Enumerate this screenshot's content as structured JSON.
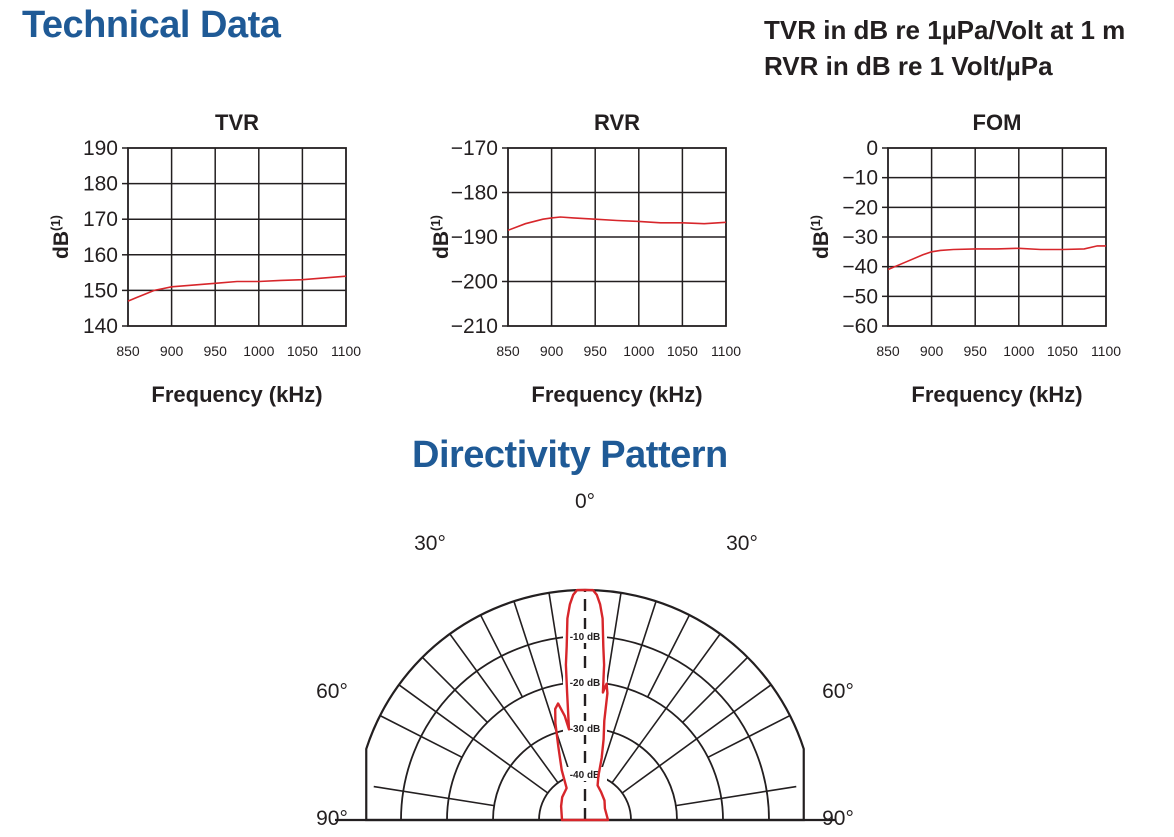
{
  "header": {
    "title": "Technical Data",
    "units_line1": "TVR in dB re 1µPa/Volt at 1 m",
    "units_line2": "RVR in dB re 1 Volt/µPa"
  },
  "directivity_title": "Directivity Pattern",
  "accent_color": "#1f5a96",
  "curve_color": "#d7262b",
  "chart_data": [
    {
      "type": "line",
      "title": "TVR",
      "xlabel": "Frequency (kHz)",
      "ylabel": "dB",
      "ylabel_sup": "(1)",
      "xlim": [
        850,
        1100
      ],
      "ylim": [
        140,
        190
      ],
      "xticks": [
        850,
        900,
        950,
        1000,
        1050,
        1100
      ],
      "yticks": [
        190,
        180,
        170,
        160,
        150,
        140
      ],
      "grid": true,
      "x": [
        850,
        860,
        870,
        880,
        890,
        900,
        925,
        950,
        975,
        1000,
        1025,
        1050,
        1075,
        1100
      ],
      "y": [
        147,
        148,
        149,
        150,
        150.5,
        151,
        151.5,
        152,
        152.5,
        152.5,
        152.8,
        153,
        153.5,
        154
      ]
    },
    {
      "type": "line",
      "title": "RVR",
      "xlabel": "Frequency (kHz)",
      "ylabel": "dB",
      "ylabel_sup": "(1)",
      "xlim": [
        850,
        1100
      ],
      "ylim": [
        -210,
        -170
      ],
      "xticks": [
        850,
        900,
        950,
        1000,
        1050,
        1100
      ],
      "yticks": [
        -170,
        -180,
        -190,
        -200,
        -210
      ],
      "grid": true,
      "x": [
        850,
        870,
        890,
        900,
        910,
        925,
        950,
        975,
        1000,
        1025,
        1050,
        1075,
        1100
      ],
      "y": [
        -188.5,
        -187,
        -186,
        -185.7,
        -185.5,
        -185.7,
        -186,
        -186.3,
        -186.5,
        -186.8,
        -186.8,
        -187,
        -186.7
      ]
    },
    {
      "type": "line",
      "title": "FOM",
      "xlabel": "Frequency (kHz)",
      "ylabel": "dB",
      "ylabel_sup": "(1)",
      "xlim": [
        850,
        1100
      ],
      "ylim": [
        -60,
        0
      ],
      "xticks": [
        850,
        900,
        950,
        1000,
        1050,
        1100
      ],
      "yticks": [
        0,
        -10,
        -20,
        -30,
        -40,
        -50,
        -60
      ],
      "grid": true,
      "x": [
        850,
        870,
        890,
        900,
        910,
        925,
        950,
        975,
        1000,
        1025,
        1050,
        1075,
        1090,
        1100
      ],
      "y": [
        -41,
        -38.5,
        -36,
        -35,
        -34.5,
        -34.2,
        -34,
        -34,
        -33.8,
        -34.2,
        -34.2,
        -34,
        -33,
        -33
      ]
    }
  ],
  "directivity": {
    "angle_labels": [
      "0°",
      "30°",
      "30°",
      "60°",
      "60°",
      "90°",
      "90°"
    ],
    "ring_labels": [
      "-10 dB",
      "-20 dB",
      "-30 dB",
      "-40 dB"
    ],
    "ring_db": [
      0,
      -10,
      -20,
      -30,
      -40
    ],
    "pattern_db": [
      [
        -90,
        -45
      ],
      [
        -60,
        -44
      ],
      [
        -45,
        -43
      ],
      [
        -30,
        -42
      ],
      [
        -25,
        -38
      ],
      [
        -20,
        -33
      ],
      [
        -17,
        -28
      ],
      [
        -15,
        -25
      ],
      [
        -13,
        -24
      ],
      [
        -11,
        -27
      ],
      [
        -10,
        -30
      ],
      [
        -8,
        -22
      ],
      [
        -7,
        -16
      ],
      [
        -6,
        -12
      ],
      [
        -5,
        -6
      ],
      [
        -4,
        -3
      ],
      [
        -3,
        -1
      ],
      [
        -2,
        0
      ],
      [
        0,
        0
      ],
      [
        2,
        0
      ],
      [
        3,
        -1
      ],
      [
        4,
        -3
      ],
      [
        5,
        -6
      ],
      [
        6,
        -12
      ],
      [
        7,
        -16
      ],
      [
        8,
        -22
      ],
      [
        9,
        -20
      ],
      [
        10,
        -22
      ],
      [
        11,
        -28
      ],
      [
        13,
        -32
      ],
      [
        15,
        -36
      ],
      [
        17,
        -40
      ],
      [
        20,
        -42
      ],
      [
        30,
        -43
      ],
      [
        45,
        -44
      ],
      [
        60,
        -45
      ],
      [
        90,
        -45
      ]
    ]
  }
}
